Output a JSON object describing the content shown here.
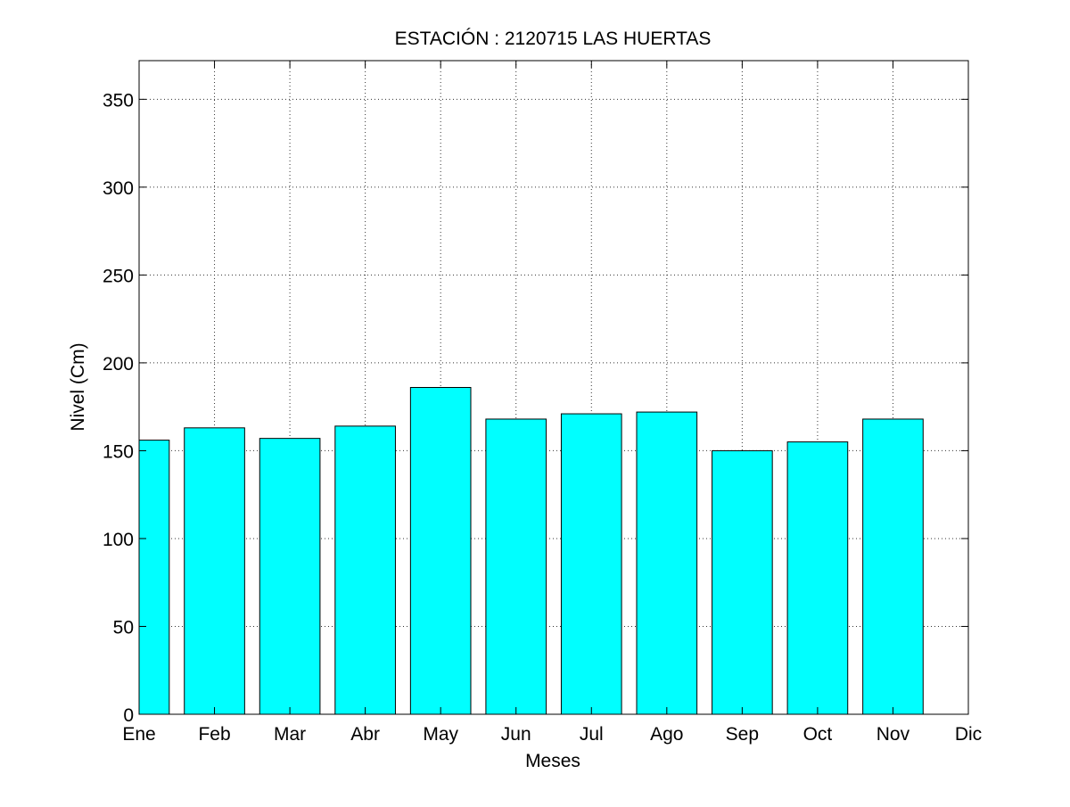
{
  "chart_data": {
    "type": "bar",
    "title": "ESTACIÓN :  2120715  LAS HUERTAS",
    "xlabel": "Meses",
    "ylabel": "Nivel (Cm)",
    "categories": [
      "Ene",
      "Feb",
      "Mar",
      "Abr",
      "May",
      "Jun",
      "Jul",
      "Ago",
      "Sep",
      "Oct",
      "Nov",
      "Dic"
    ],
    "values": [
      156,
      163,
      157,
      164,
      186,
      168,
      171,
      172,
      150,
      155,
      168,
      null
    ],
    "ylim": [
      0,
      372
    ],
    "xlim": [
      1,
      12
    ],
    "yticks": [
      0,
      50,
      100,
      150,
      200,
      250,
      300,
      350
    ],
    "grid": true,
    "colors": {
      "bar_fill": "#00ffff",
      "bar_edge": "#000000",
      "grid": "#333333",
      "axes": "#000000"
    }
  }
}
